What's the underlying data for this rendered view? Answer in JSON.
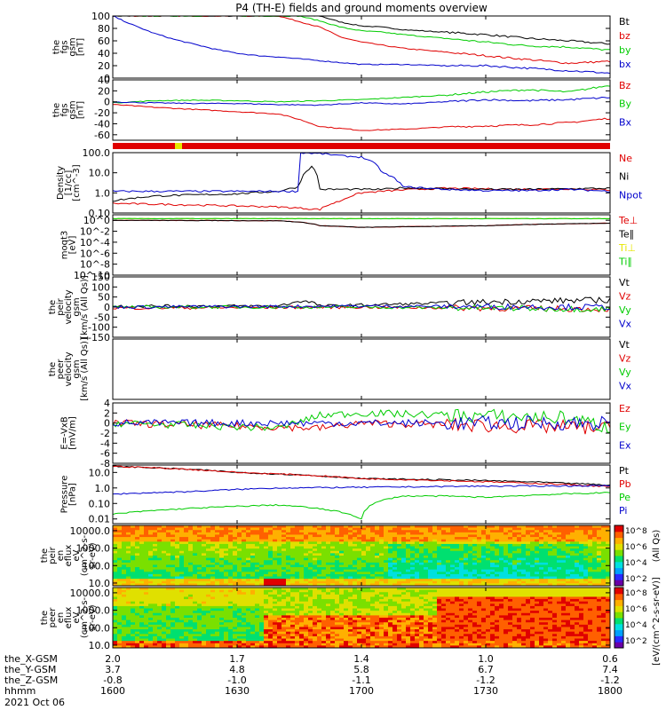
{
  "title": "P4 (TH-E) fields and ground moments overview",
  "colors": {
    "black": "#000000",
    "red": "#e00000",
    "green": "#00cc00",
    "blue": "#0000cc",
    "yellow": "#e6e600"
  },
  "chart_data": [
    {
      "type": "line",
      "id": "p1",
      "ylabel": [
        "the",
        "fgs",
        "gsm",
        "[nT]"
      ],
      "ylim": [
        0,
        100
      ],
      "yticks": [
        0,
        20,
        40,
        60,
        80,
        100
      ],
      "series": [
        {
          "name": "Bt",
          "color": "#000000",
          "x": [
            1600,
            1610,
            1620,
            1630,
            1640,
            1645,
            1650,
            1655,
            1700,
            1705,
            1710,
            1720,
            1730,
            1740,
            1750,
            1800
          ],
          "values": [
            100,
            100,
            100,
            100,
            100,
            100,
            100,
            90,
            84,
            82,
            78,
            74,
            70,
            64,
            60,
            55
          ]
        },
        {
          "name": "bz",
          "color": "#e00000",
          "x": [
            1600,
            1610,
            1620,
            1630,
            1640,
            1650,
            1655,
            1700,
            1710,
            1720,
            1730,
            1740,
            1750,
            1800
          ],
          "values": [
            100,
            100,
            100,
            100,
            100,
            82,
            66,
            58,
            48,
            42,
            36,
            30,
            24,
            27
          ]
        },
        {
          "name": "by",
          "color": "#00cc00",
          "x": [
            1600,
            1610,
            1620,
            1630,
            1640,
            1645,
            1650,
            1655,
            1700,
            1705,
            1710,
            1720,
            1730,
            1740,
            1750,
            1800
          ],
          "values": [
            100,
            100,
            100,
            100,
            100,
            100,
            92,
            82,
            76,
            74,
            70,
            64,
            58,
            52,
            50,
            45
          ]
        },
        {
          "name": "bx",
          "color": "#0000cc",
          "x": [
            1600,
            1605,
            1610,
            1615,
            1620,
            1625,
            1630,
            1635,
            1640,
            1650,
            1700,
            1710,
            1720,
            1730,
            1740,
            1750,
            1800
          ],
          "values": [
            100,
            85,
            72,
            62,
            54,
            46,
            40,
            36,
            34,
            28,
            22,
            22,
            20,
            20,
            16,
            12,
            8
          ]
        }
      ]
    },
    {
      "type": "line",
      "id": "p2",
      "ylabel": [
        "the",
        "fgs",
        "gsm",
        "[nT]"
      ],
      "ylim": [
        -70,
        40
      ],
      "yticks": [
        -60,
        -40,
        -20,
        0,
        20,
        40
      ],
      "series": [
        {
          "name": "Bz",
          "color": "#e00000",
          "x": [
            1600,
            1610,
            1620,
            1630,
            1640,
            1645,
            1650,
            1700,
            1710,
            1720,
            1730,
            1740,
            1750,
            1800
          ],
          "values": [
            -5,
            -10,
            -14,
            -18,
            -22,
            -32,
            -45,
            -52,
            -50,
            -46,
            -44,
            -42,
            -38,
            -30
          ]
        },
        {
          "name": "By",
          "color": "#00cc00",
          "x": [
            1600,
            1610,
            1620,
            1630,
            1640,
            1650,
            1700,
            1710,
            1720,
            1730,
            1740,
            1750,
            1800
          ],
          "values": [
            -2,
            2,
            3,
            2,
            0,
            2,
            4,
            8,
            12,
            18,
            22,
            18,
            30
          ]
        },
        {
          "name": "Bx",
          "color": "#0000cc",
          "x": [
            1600,
            1610,
            1620,
            1630,
            1640,
            1650,
            1700,
            1710,
            1720,
            1730,
            1740,
            1750,
            1800
          ],
          "values": [
            0,
            -2,
            -3,
            -3,
            -5,
            -6,
            -2,
            -4,
            0,
            4,
            2,
            4,
            8
          ]
        }
      ]
    },
    {
      "type": "line",
      "id": "p3",
      "ylabel": [
        "Density",
        "[1/cc]",
        "[cm^-3]"
      ],
      "ylim": [
        0.1,
        100
      ],
      "scale": "log",
      "yticks": [
        0.1,
        1.0,
        10.0,
        100.0
      ],
      "series": [
        {
          "name": "Ne",
          "color": "#e00000",
          "x": [
            1600,
            1620,
            1640,
            1650,
            1655,
            1700,
            1710,
            1720,
            1730,
            1740,
            1750,
            1800
          ],
          "values": [
            0.3,
            0.25,
            0.2,
            0.15,
            0.4,
            1.0,
            1.4,
            1.7,
            1.6,
            1.5,
            1.6,
            1.4
          ]
        },
        {
          "name": "Ni",
          "color": "#000000",
          "x": [
            1600,
            1610,
            1620,
            1630,
            1640,
            1645,
            1648,
            1650,
            1655,
            1700,
            1705,
            1710,
            1720,
            1730,
            1740,
            1800
          ],
          "values": [
            0.4,
            0.7,
            0.8,
            0.9,
            1.2,
            2,
            20,
            1.5,
            1.5,
            1.5,
            1.5,
            1.8,
            1.6,
            1.5,
            1.5,
            1.7
          ]
        },
        {
          "name": "Npot",
          "color": "#0000cc",
          "x": [
            1645,
            1650,
            1655,
            1700,
            1705,
            1710,
            1720,
            1730,
            1740,
            1750,
            1800
          ],
          "values": [
            100,
            90,
            70,
            60,
            10,
            2,
            1.5,
            1.3,
            1.3,
            1.5,
            1.2
          ]
        }
      ]
    },
    {
      "type": "line",
      "id": "p4",
      "ylabel": [
        "moqt3",
        "[eV]"
      ],
      "ylim": [
        1e-10,
        10
      ],
      "scale": "log",
      "yticks": [
        "10^-10",
        "10^-8",
        "10^-6",
        "10^-4",
        "10^-2",
        "10^0",
        "10^2"
      ],
      "series": [
        {
          "name": "Te⊥",
          "color": "#e00000",
          "x": [
            1600,
            1640,
            1650,
            1700,
            1730,
            1800
          ],
          "values": [
            1,
            0.8,
            0.1,
            0.05,
            0.1,
            0.3
          ]
        },
        {
          "name": "Te∥",
          "color": "#000000",
          "x": [
            1600,
            1640,
            1650,
            1700,
            1730,
            1800
          ],
          "values": [
            1,
            0.8,
            0.1,
            0.05,
            0.1,
            0.3
          ]
        },
        {
          "name": "Ti⊥",
          "color": "#e6e600",
          "x": [
            1600,
            1800
          ],
          "values": [
            2,
            2
          ]
        },
        {
          "name": "Ti∥",
          "color": "#00cc00",
          "x": [
            1600,
            1800
          ],
          "values": [
            2,
            2
          ]
        }
      ]
    },
    {
      "type": "line",
      "id": "p5",
      "ylabel": [
        "the",
        "peir",
        "velocity",
        "gsm",
        "[km/s (All Qs)]"
      ],
      "ylim": [
        -150,
        150
      ],
      "yticks": [
        -150,
        -100,
        -50,
        0,
        50,
        100,
        150
      ],
      "series": [
        {
          "name": "Vt",
          "color": "#000000",
          "x": [
            1600,
            1640,
            1645,
            1648,
            1650,
            1700,
            1720,
            1740,
            1800
          ],
          "values": [
            5,
            5,
            30,
            25,
            5,
            10,
            20,
            30,
            35
          ]
        },
        {
          "name": "Vz",
          "color": "#e00000",
          "x": [
            1600,
            1700,
            1800
          ],
          "values": [
            -5,
            0,
            -10
          ]
        },
        {
          "name": "Vy",
          "color": "#00cc00",
          "x": [
            1600,
            1700,
            1800
          ],
          "values": [
            0,
            0,
            -10
          ]
        },
        {
          "name": "Vx",
          "color": "#0000cc",
          "x": [
            1600,
            1700,
            1800
          ],
          "values": [
            0,
            5,
            0
          ]
        }
      ]
    },
    {
      "type": "line",
      "id": "p6",
      "ylabel": [
        "the",
        "peer",
        "velocity",
        "gsm",
        "[km/s (All Qs)]"
      ],
      "ylim": [
        -150,
        150
      ],
      "series": [
        {
          "name": "Vt",
          "color": "#000000"
        },
        {
          "name": "Vz",
          "color": "#e00000"
        },
        {
          "name": "Vy",
          "color": "#00cc00"
        },
        {
          "name": "Vx",
          "color": "#0000cc"
        }
      ]
    },
    {
      "type": "line",
      "id": "p7",
      "ylabel": [
        "E=-VxB",
        "[mV/m]"
      ],
      "ylim": [
        -8,
        4
      ],
      "yticks": [
        -8,
        -6,
        -4,
        -2,
        0,
        2,
        4
      ],
      "series": [
        {
          "name": "Ez",
          "color": "#e00000",
          "x": [
            1600,
            1650,
            1700,
            1800
          ],
          "values": [
            0,
            -1,
            0,
            -1
          ]
        },
        {
          "name": "Ey",
          "color": "#00cc00",
          "x": [
            1600,
            1640,
            1650,
            1700,
            1750,
            1800
          ],
          "values": [
            0,
            -1,
            1.5,
            2,
            1,
            -1
          ]
        },
        {
          "name": "Ex",
          "color": "#0000cc",
          "x": [
            1600,
            1700,
            1800
          ],
          "values": [
            0,
            0,
            0
          ]
        }
      ]
    },
    {
      "type": "line",
      "id": "p8",
      "ylabel": [
        "Pressure",
        "[nPa]"
      ],
      "ylim": [
        0.005,
        30
      ],
      "scale": "log",
      "yticks": [
        0.01,
        0.1,
        1.0,
        10.0
      ],
      "series": [
        {
          "name": "Pt",
          "color": "#000000",
          "x": [
            1600,
            1630,
            1700,
            1730,
            1800
          ],
          "values": [
            25,
            10,
            4,
            3,
            1.5
          ]
        },
        {
          "name": "Pb",
          "color": "#e00000",
          "x": [
            1600,
            1630,
            1700,
            1730,
            1800
          ],
          "values": [
            25,
            10,
            4,
            2.5,
            1.2
          ]
        },
        {
          "name": "Pe",
          "color": "#00cc00",
          "x": [
            1600,
            1620,
            1640,
            1700,
            1710,
            1720,
            1730,
            1800
          ],
          "values": [
            0.02,
            0.05,
            0.08,
            0.01,
            0.3,
            0.3,
            0.25,
            0.5
          ]
        },
        {
          "name": "Pi",
          "color": "#0000cc",
          "x": [
            1600,
            1620,
            1640,
            1700,
            1730,
            1800
          ],
          "values": [
            0.4,
            0.6,
            1,
            1.1,
            1.3,
            1.4
          ]
        }
      ]
    },
    {
      "type": "heatmap",
      "id": "p9",
      "ylabel": [
        "the",
        "peir",
        "en",
        "eflux",
        "eV",
        "(cm^2-s-",
        "sr-eV)"
      ],
      "ylim": [
        7,
        20000
      ],
      "scale": "log",
      "yticks": [
        10,
        100,
        1000,
        10000
      ]
    },
    {
      "type": "heatmap",
      "id": "p10",
      "ylabel": [
        "the",
        "peer",
        "en",
        "eflux",
        "eV",
        "(cm^2-s-",
        "sr-eV)"
      ],
      "ylim": [
        7,
        20000
      ],
      "scale": "log",
      "yticks": [
        10,
        100,
        1000,
        10000
      ]
    }
  ],
  "colorbar": {
    "label": "[eV/(cm^2-s-sr-eV)]",
    "label2": "(All Qs)",
    "ticks": [
      "10^2",
      "10^4",
      "10^6",
      "10^8"
    ]
  },
  "x_axis": {
    "ticks_hhmm": [
      1600,
      1630,
      1700,
      1730,
      1800
    ],
    "rows": [
      {
        "label": "the_X-GSM",
        "values": [
          "2.0",
          "1.7",
          "1.4",
          "1.0",
          "0.6"
        ]
      },
      {
        "label": "the_Y-GSM",
        "values": [
          "3.7",
          "4.8",
          "5.8",
          "6.7",
          "7.4"
        ]
      },
      {
        "label": "the_Z-GSM",
        "values": [
          "-0.8",
          "-1.0",
          "-1.1",
          "-1.2",
          "-1.2"
        ]
      },
      {
        "label": "hhmm",
        "values": [
          "1600",
          "1630",
          "1700",
          "1730",
          "1800"
        ]
      }
    ],
    "date": "2021 Oct 06"
  }
}
